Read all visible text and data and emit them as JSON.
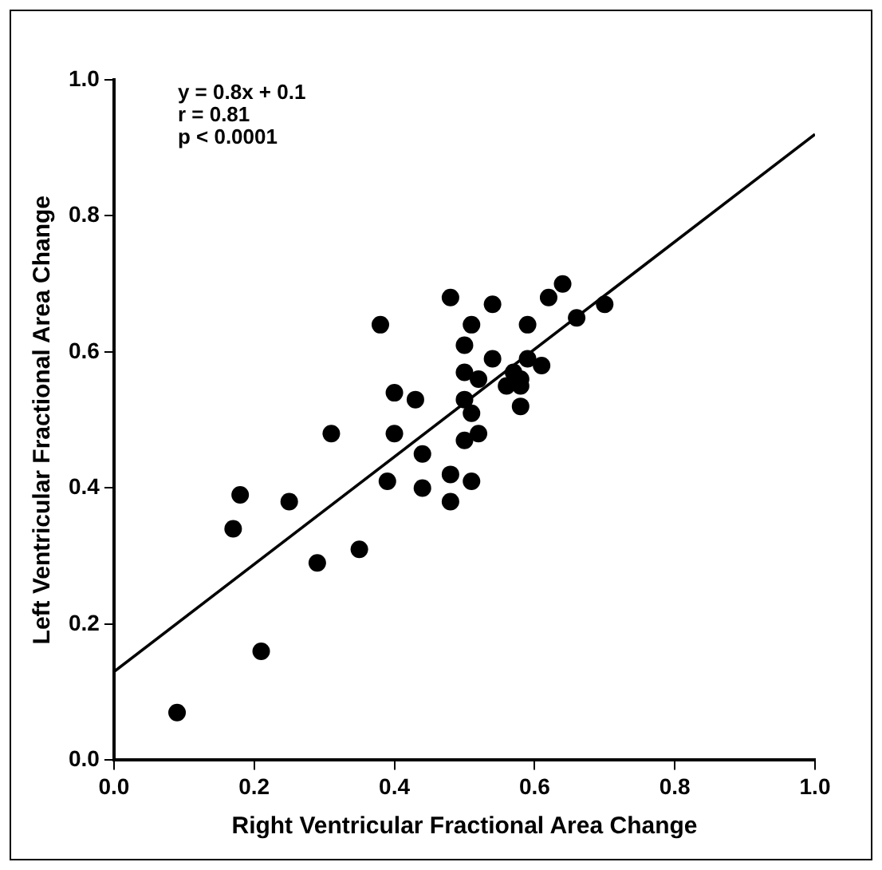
{
  "chart_data": {
    "type": "scatter",
    "xlabel": "Right Ventricular Fractional Area Change",
    "ylabel": "Left Ventricular Fractional Area Change",
    "annotations": [
      "y = 0.8x + 0.1",
      "r = 0.81",
      "p < 0.0001"
    ],
    "xlim": [
      0,
      1
    ],
    "ylim": [
      0,
      1
    ],
    "xticks": [
      {
        "value": 0,
        "label": "0.0"
      },
      0.2,
      0.4,
      0.6,
      0.8,
      {
        "value": 1,
        "label": "1.0"
      }
    ],
    "yticks": [
      {
        "value": 0,
        "label": "0.0"
      },
      0.2,
      0.4,
      0.6,
      0.8,
      {
        "value": 1,
        "label": "1.0"
      }
    ],
    "grid": false,
    "legend": false,
    "marker": "circle",
    "series": [
      {
        "color": "#000000",
        "x": [
          0.09,
          0.21,
          0.17,
          0.18,
          0.25,
          0.29,
          0.35,
          0.31,
          0.4,
          0.43,
          0.4,
          0.39,
          0.44,
          0.44,
          0.48,
          0.48,
          0.51,
          0.5,
          0.52,
          0.51,
          0.5,
          0.58,
          0.58,
          0.58,
          0.52,
          0.5,
          0.38,
          0.48,
          0.54,
          0.51,
          0.5,
          0.54,
          0.59,
          0.62,
          0.64,
          0.66,
          0.7,
          0.59,
          0.61,
          0.57,
          0.56
        ],
        "values": [
          0.07,
          0.16,
          0.34,
          0.39,
          0.38,
          0.29,
          0.31,
          0.48,
          0.54,
          0.53,
          0.48,
          0.41,
          0.45,
          0.4,
          0.42,
          0.38,
          0.41,
          0.47,
          0.48,
          0.51,
          0.53,
          0.52,
          0.55,
          0.56,
          0.56,
          0.57,
          0.64,
          0.68,
          0.67,
          0.64,
          0.61,
          0.59,
          0.64,
          0.68,
          0.7,
          0.65,
          0.67,
          0.59,
          0.58,
          0.57,
          0.55
        ]
      },
      {
        "type": "line",
        "color": "#000000",
        "marker": "none",
        "line_style": "solid",
        "x": [
          0,
          1
        ],
        "values": [
          0.13,
          0.92
        ]
      }
    ]
  }
}
